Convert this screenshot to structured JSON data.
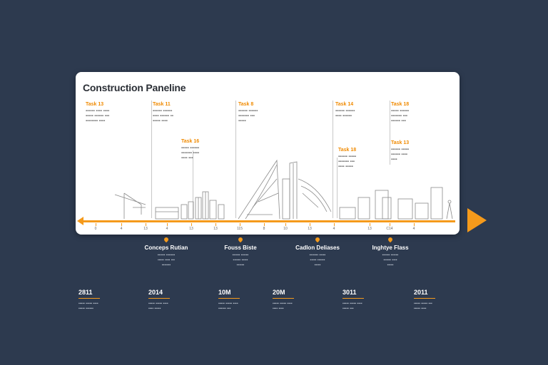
{
  "panel": {
    "title": "Construction Paneline"
  },
  "callouts": [
    {
      "title": "Task 13"
    },
    {
      "title": "Task 11"
    },
    {
      "title": "Task 16"
    },
    {
      "title": "Task 8"
    },
    {
      "title": "Task 14"
    },
    {
      "title": "Task 18"
    },
    {
      "title": "Task 18"
    },
    {
      "title": "Task 13"
    }
  ],
  "ticks": [
    "0",
    "4",
    "13",
    "4",
    "13",
    "13",
    "115",
    "8",
    "10",
    "13",
    "4",
    "13",
    "C14",
    "4"
  ],
  "milestones": [
    {
      "title": "Conceps Rutian"
    },
    {
      "title": "Fouss Biste"
    },
    {
      "title": "Cadlon Deliases"
    },
    {
      "title": "Inghtye Flass"
    }
  ],
  "years": [
    {
      "label": "2811"
    },
    {
      "label": "2014"
    },
    {
      "label": "10M"
    },
    {
      "label": "20M"
    },
    {
      "label": "3011"
    },
    {
      "label": "2011"
    }
  ],
  "colors": {
    "background": "#2d3a4f",
    "accent": "#f59a1b",
    "panel": "#ffffff"
  }
}
